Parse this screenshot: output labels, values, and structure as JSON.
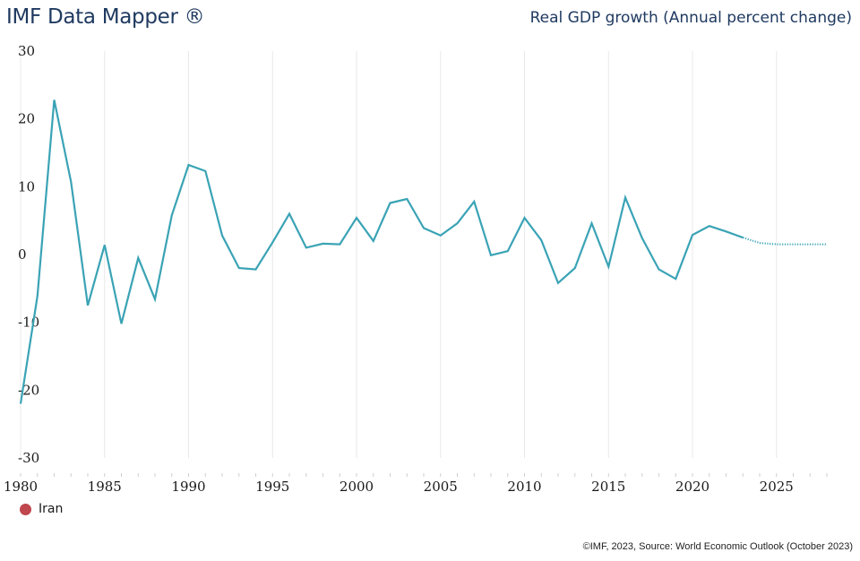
{
  "header": {
    "brand": "IMF Data Mapper ®",
    "indicator_title": "Real GDP growth (Annual percent change)"
  },
  "legend": {
    "items": [
      {
        "label": "Iran",
        "color": "#c0474d"
      }
    ]
  },
  "footer": {
    "source": "©IMF, 2023, Source: World Economic Outlook (October 2023)"
  },
  "colors": {
    "series_line": "#3aa3b5",
    "gridline": "#e8e8ea",
    "text_dark": "#1f3a60"
  },
  "chart_data": {
    "type": "line",
    "title": "Real GDP growth (Annual percent change)",
    "xlabel": "",
    "ylabel": "",
    "ylim": [
      -30,
      30
    ],
    "xlim": [
      1980,
      2028
    ],
    "yticks": [
      30,
      20,
      10,
      0,
      -10,
      -20,
      -30
    ],
    "xticks": [
      1980,
      1985,
      1990,
      1995,
      2000,
      2005,
      2010,
      2015,
      2020,
      2025
    ],
    "grid": "vertical",
    "legend_position": "bottom-left",
    "projection_start": 2023,
    "series": [
      {
        "name": "Iran",
        "x": [
          1980,
          1981,
          1982,
          1983,
          1984,
          1985,
          1986,
          1987,
          1988,
          1989,
          1990,
          1991,
          1992,
          1993,
          1994,
          1995,
          1996,
          1997,
          1998,
          1999,
          2000,
          2001,
          2002,
          2003,
          2004,
          2005,
          2006,
          2007,
          2008,
          2009,
          2010,
          2011,
          2012,
          2013,
          2014,
          2015,
          2016,
          2017,
          2018,
          2019,
          2020,
          2021,
          2022,
          2023,
          2024,
          2025,
          2026,
          2027,
          2028
        ],
        "values": [
          -22.0,
          -6.1,
          22.8,
          10.7,
          -7.5,
          1.4,
          -10.2,
          -0.5,
          -6.6,
          5.8,
          13.2,
          12.3,
          2.8,
          -2.0,
          -2.2,
          1.8,
          6.0,
          1.0,
          1.6,
          1.5,
          5.4,
          2.0,
          7.6,
          8.2,
          3.9,
          2.8,
          4.6,
          7.8,
          -0.1,
          0.5,
          5.4,
          2.1,
          -4.2,
          -2.0,
          4.6,
          -1.8,
          8.4,
          2.4,
          -2.2,
          -3.6,
          2.9,
          4.2,
          3.4,
          2.5,
          1.7,
          1.5,
          1.5,
          1.5,
          1.5
        ]
      }
    ]
  }
}
